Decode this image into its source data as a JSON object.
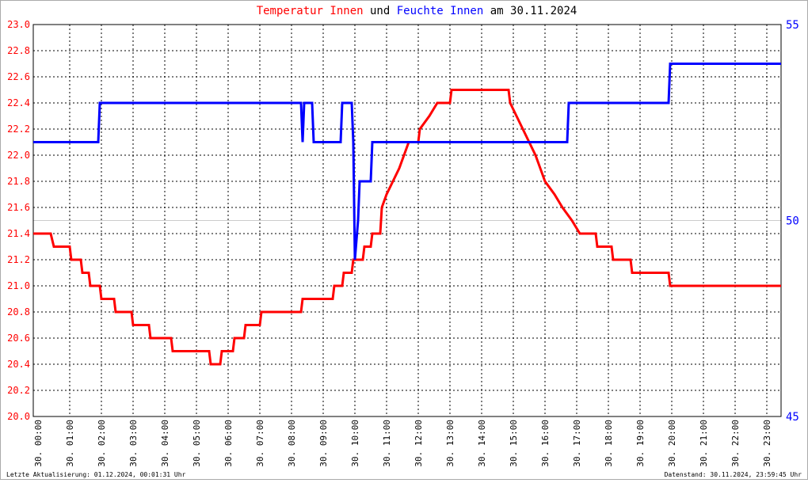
{
  "chart_data": {
    "type": "line",
    "title_parts": [
      "und",
      "am 30.11.2024"
    ],
    "footer_left": "Letzte Aktualisierung: 01.12.2024, 00:01:31 Uhr",
    "footer_right": "Datenstand: 30.11.2024, 23:59:45 Uhr",
    "xlim": [
      -0.15,
      23.45
    ],
    "xticks": [
      {
        "value": 0,
        "label": "30. 00:00"
      },
      {
        "value": 1,
        "label": "30. 01:00"
      },
      {
        "value": 2,
        "label": "30. 02:00"
      },
      {
        "value": 3,
        "label": "30. 03:00"
      },
      {
        "value": 4,
        "label": "30. 04:00"
      },
      {
        "value": 5,
        "label": "30. 05:00"
      },
      {
        "value": 6,
        "label": "30. 06:00"
      },
      {
        "value": 7,
        "label": "30. 07:00"
      },
      {
        "value": 8,
        "label": "30. 08:00"
      },
      {
        "value": 9,
        "label": "30. 09:00"
      },
      {
        "value": 10,
        "label": "30. 10:00"
      },
      {
        "value": 11,
        "label": "30. 11:00"
      },
      {
        "value": 12,
        "label": "30. 12:00"
      },
      {
        "value": 13,
        "label": "30. 13:00"
      },
      {
        "value": 14,
        "label": "30. 14:00"
      },
      {
        "value": 15,
        "label": "30. 15:00"
      },
      {
        "value": 16,
        "label": "30. 16:00"
      },
      {
        "value": 17,
        "label": "30. 17:00"
      },
      {
        "value": 18,
        "label": "30. 18:00"
      },
      {
        "value": 19,
        "label": "30. 19:00"
      },
      {
        "value": 20,
        "label": "30. 20:00"
      },
      {
        "value": 21,
        "label": "30. 21:00"
      },
      {
        "value": 22,
        "label": "30. 22:00"
      },
      {
        "value": 23,
        "label": "30. 23:00"
      }
    ],
    "ylim": [
      20,
      23
    ],
    "yticks": [
      {
        "value": 20,
        "label": "20.0"
      },
      20.2,
      20.4,
      20.6,
      20.8,
      {
        "value": 21,
        "label": "21.0"
      },
      21.2,
      21.4,
      21.6,
      21.8,
      {
        "value": 22,
        "label": "22.0"
      },
      22.2,
      22.4,
      22.6,
      22.8,
      {
        "value": 23,
        "label": "23.0"
      }
    ],
    "y2lim": [
      45,
      55
    ],
    "y2ticks": [
      45,
      50,
      55
    ],
    "grid": true,
    "series": [
      {
        "name": "Temperatur Innen",
        "color": "#ff0000",
        "x": [
          -0.15,
          0.4,
          0.5,
          1.0,
          1.05,
          1.35,
          1.4,
          1.6,
          1.65,
          1.95,
          2.0,
          2.4,
          2.45,
          2.95,
          3.0,
          3.5,
          3.55,
          4.2,
          4.25,
          5.4,
          5.45,
          5.75,
          5.8,
          6.15,
          6.2,
          6.5,
          6.55,
          7.0,
          7.05,
          8.3,
          8.35,
          9.3,
          9.35,
          9.6,
          9.65,
          9.9,
          9.95,
          10.25,
          10.3,
          10.5,
          10.55,
          10.8,
          10.85,
          11.0,
          11.2,
          11.4,
          11.55,
          11.7,
          12.0,
          12.05,
          12.35,
          12.6,
          13.0,
          13.05,
          14.85,
          14.9,
          15.1,
          15.3,
          15.5,
          15.7,
          15.85,
          16.0,
          16.3,
          16.55,
          16.85,
          17.1,
          17.6,
          17.65,
          18.1,
          18.15,
          18.7,
          18.75,
          19.9,
          19.95,
          23.45
        ],
        "values": [
          21.4,
          21.4,
          21.3,
          21.3,
          21.2,
          21.2,
          21.1,
          21.1,
          21.0,
          21.0,
          20.9,
          20.9,
          20.8,
          20.8,
          20.7,
          20.7,
          20.6,
          20.6,
          20.5,
          20.5,
          20.4,
          20.4,
          20.5,
          20.5,
          20.6,
          20.6,
          20.7,
          20.7,
          20.8,
          20.8,
          20.9,
          20.9,
          21.0,
          21.0,
          21.1,
          21.1,
          21.2,
          21.2,
          21.3,
          21.3,
          21.4,
          21.4,
          21.6,
          21.7,
          21.8,
          21.9,
          22.0,
          22.1,
          22.1,
          22.2,
          22.3,
          22.4,
          22.4,
          22.5,
          22.5,
          22.4,
          22.3,
          22.2,
          22.1,
          22.0,
          21.9,
          21.8,
          21.7,
          21.6,
          21.5,
          21.4,
          21.4,
          21.3,
          21.3,
          21.2,
          21.2,
          21.1,
          21.1,
          21.0,
          21.0
        ]
      },
      {
        "name": "Feuchte Innen",
        "color": "#0000ff",
        "axis": "y2",
        "x": [
          -0.15,
          1.9,
          1.95,
          8.3,
          8.35,
          8.4,
          8.65,
          8.7,
          9.55,
          9.6,
          9.9,
          9.95,
          10.0,
          10.1,
          10.15,
          10.5,
          10.55,
          16.7,
          16.75,
          19.9,
          19.95,
          23.45
        ],
        "values": [
          52,
          52,
          53,
          53,
          52,
          53,
          53,
          52,
          52,
          53,
          53,
          52,
          49,
          50,
          51,
          51,
          52,
          52,
          53,
          53,
          54,
          54
        ]
      }
    ]
  }
}
